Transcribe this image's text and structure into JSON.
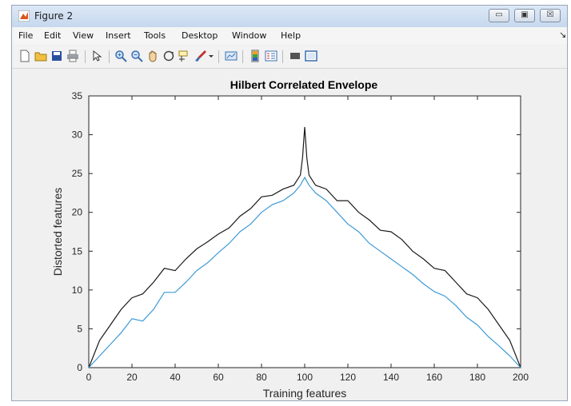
{
  "window": {
    "title": "Figure 2",
    "minimize": "▭",
    "maximize": "▣",
    "close": "☒"
  },
  "menu": [
    "File",
    "Edit",
    "View",
    "Insert",
    "Tools",
    "Desktop",
    "Window",
    "Help"
  ],
  "menu_arrow": "↘",
  "toolbar": [
    {
      "name": "new-figure-icon",
      "color": "#ffffff"
    },
    {
      "name": "open-file-icon",
      "color": "#f0c040"
    },
    {
      "name": "save-icon",
      "color": "#2a4fa0"
    },
    {
      "name": "print-icon",
      "color": "#9aa0a8"
    },
    {
      "name": "edit-plot-pointer-icon",
      "color": "#333333"
    },
    {
      "name": "zoom-in-icon",
      "color": "#3a6fb0"
    },
    {
      "name": "zoom-out-icon",
      "color": "#3a6fb0"
    },
    {
      "name": "pan-hand-icon",
      "color": "#e0b070"
    },
    {
      "name": "rotate-3d-icon",
      "color": "#444444"
    },
    {
      "name": "data-cursor-icon",
      "color": "#d0b030"
    },
    {
      "name": "brush-icon",
      "color": "#c03030"
    },
    {
      "name": "link-plot-icon",
      "color": "#3a6fb0"
    },
    {
      "name": "insert-colorbar-icon",
      "color": "#f0a020"
    },
    {
      "name": "insert-legend-icon",
      "color": "#3a6fb0"
    },
    {
      "name": "hide-plot-tools-icon",
      "color": "#555555"
    },
    {
      "name": "show-plot-tools-icon",
      "color": "#3a6fb0"
    }
  ],
  "chart_data": {
    "type": "line",
    "title": "Hilbert Correlated Envelope",
    "xlabel": "Training features",
    "ylabel": "Distorted features",
    "xlim": [
      0,
      200
    ],
    "ylim": [
      0,
      35
    ],
    "xticks": [
      0,
      20,
      40,
      60,
      80,
      100,
      120,
      140,
      160,
      180,
      200
    ],
    "yticks": [
      0,
      5,
      10,
      15,
      20,
      25,
      30,
      35
    ],
    "grid": false,
    "legend": "none",
    "series": [
      {
        "color": "#1a1a1a",
        "x": [
          0,
          5,
          10,
          15,
          20,
          25,
          30,
          35,
          40,
          45,
          50,
          55,
          60,
          65,
          70,
          75,
          80,
          85,
          90,
          95,
          98,
          99,
          100,
          101,
          102,
          105,
          110,
          115,
          120,
          125,
          130,
          135,
          140,
          145,
          150,
          155,
          160,
          165,
          170,
          175,
          180,
          185,
          190,
          195,
          200
        ],
        "y": [
          0,
          3.5,
          5.5,
          7.5,
          9,
          9.5,
          11,
          12.8,
          12.5,
          14,
          15.3,
          16.2,
          17.2,
          18,
          19.5,
          20.5,
          22,
          22.2,
          23,
          23.5,
          24.8,
          27,
          31,
          27,
          24.8,
          23.5,
          23,
          21.5,
          21.5,
          20,
          19,
          17.7,
          17.5,
          16.5,
          15,
          14,
          12.8,
          12.5,
          11,
          9.5,
          9,
          7.5,
          5.5,
          3.5,
          0
        ]
      },
      {
        "color": "#3d9ad6",
        "x": [
          0,
          5,
          10,
          15,
          20,
          25,
          30,
          35,
          40,
          45,
          50,
          55,
          60,
          65,
          70,
          75,
          80,
          85,
          90,
          95,
          98,
          100,
          102,
          105,
          110,
          115,
          120,
          125,
          130,
          135,
          140,
          145,
          150,
          155,
          160,
          165,
          170,
          175,
          180,
          185,
          190,
          195,
          200
        ],
        "y": [
          0,
          1.5,
          3,
          4.5,
          6.3,
          6,
          7.5,
          9.7,
          9.7,
          11,
          12.5,
          13.5,
          14.8,
          16,
          17.5,
          18.5,
          20,
          21,
          21.5,
          22.5,
          23.5,
          24.5,
          23.5,
          22.5,
          21.5,
          20,
          18.5,
          17.5,
          16,
          15,
          14,
          13,
          12,
          10.8,
          9.8,
          9.2,
          8,
          6.5,
          5.5,
          4,
          2.8,
          1.5,
          0
        ]
      }
    ]
  }
}
